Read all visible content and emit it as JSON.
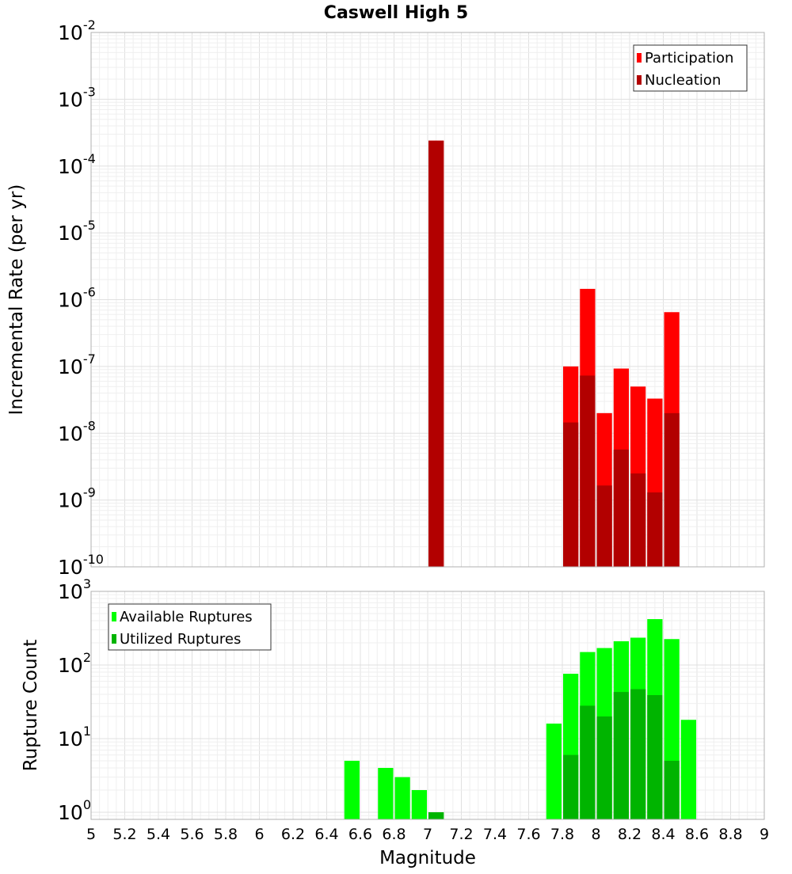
{
  "chart_data": {
    "title": "Caswell High 5",
    "xlabel": "Magnitude",
    "x_ticks": [
      "5",
      "5.2",
      "5.4",
      "5.6",
      "5.8",
      "6",
      "6.2",
      "6.4",
      "6.6",
      "6.8",
      "7",
      "7.2",
      "7.4",
      "7.6",
      "7.8",
      "8",
      "8.2",
      "8.4",
      "8.6",
      "8.8",
      "9"
    ],
    "xlim": [
      5,
      9
    ],
    "grid": true,
    "bin_width": 0.1,
    "panels": [
      {
        "type": "bar",
        "ylabel": "Incremental Rate (per yr)",
        "yscale": "log",
        "ylim": [
          1e-10,
          0.01
        ],
        "y_ticks": [
          {
            "base": "10",
            "exp": "-10"
          },
          {
            "base": "10",
            "exp": "-9"
          },
          {
            "base": "10",
            "exp": "-8"
          },
          {
            "base": "10",
            "exp": "-7"
          },
          {
            "base": "10",
            "exp": "-6"
          },
          {
            "base": "10",
            "exp": "-5"
          },
          {
            "base": "10",
            "exp": "-4"
          },
          {
            "base": "10",
            "exp": "-3"
          },
          {
            "base": "10",
            "exp": "-2"
          }
        ],
        "legend_position": "top-right",
        "series": [
          {
            "name": "Participation",
            "color": "#ff0000",
            "x": [
              7.05,
              7.85,
              7.95,
              8.05,
              8.15,
              8.25,
              8.35,
              8.45
            ],
            "y": [
              0.00024,
              1e-07,
              1.45e-06,
              2e-08,
              9.3e-08,
              5e-08,
              3.3e-08,
              6.5e-07
            ]
          },
          {
            "name": "Nucleation",
            "color": "#b20000",
            "x": [
              7.05,
              7.85,
              7.95,
              8.05,
              8.15,
              8.25,
              8.35,
              8.45
            ],
            "y": [
              0.00024,
              1.45e-08,
              7.3e-08,
              1.65e-09,
              5.7e-09,
              2.5e-09,
              1.3e-09,
              2e-08
            ]
          }
        ]
      },
      {
        "type": "bar",
        "ylabel": "Rupture Count",
        "yscale": "log",
        "ylim": [
          0.8,
          1000
        ],
        "y_ticks": [
          {
            "base": "10",
            "exp": "0"
          },
          {
            "base": "10",
            "exp": "1"
          },
          {
            "base": "10",
            "exp": "2"
          },
          {
            "base": "10",
            "exp": "3"
          }
        ],
        "legend_position": "top-left",
        "series": [
          {
            "name": "Available Ruptures",
            "color": "#00ff00",
            "x": [
              6.55,
              6.75,
              6.85,
              6.95,
              7.05,
              7.75,
              7.85,
              7.95,
              8.05,
              8.15,
              8.25,
              8.35,
              8.45,
              8.55
            ],
            "y": [
              5,
              4,
              3,
              2,
              1,
              16,
              76,
              150,
              170,
              210,
              235,
              420,
              225,
              18
            ]
          },
          {
            "name": "Utilized Ruptures",
            "color": "#00b400",
            "x": [
              7.05,
              7.85,
              7.95,
              8.05,
              8.15,
              8.25,
              8.35,
              8.45
            ],
            "y": [
              1,
              6,
              28,
              20,
              43,
              47,
              39,
              5
            ]
          }
        ]
      }
    ]
  }
}
